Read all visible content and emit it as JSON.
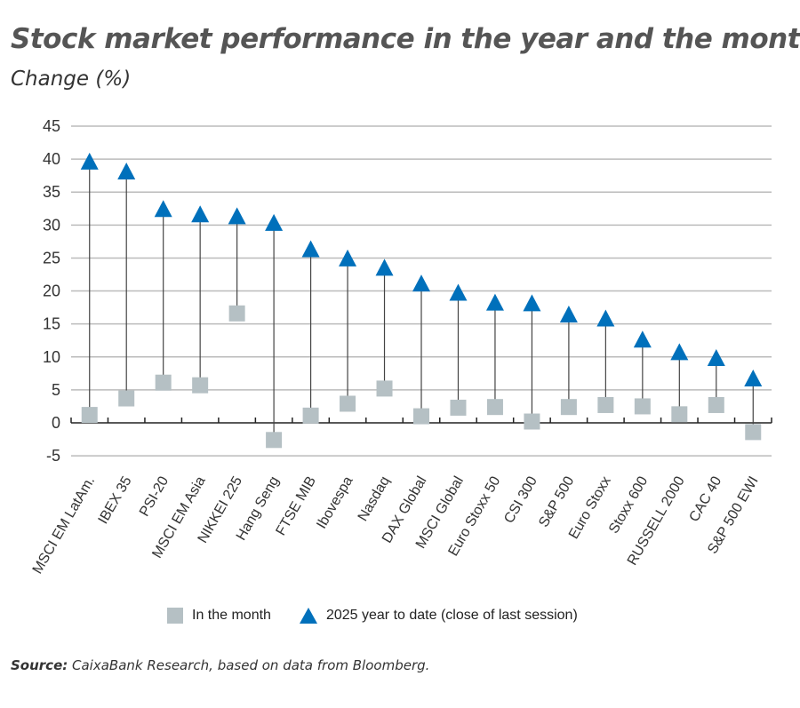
{
  "title": "Stock market performance in the year and the month",
  "subtitle": "Change (%)",
  "source_label": "Source:",
  "source_text": " CaixaBank Research, based on data from Bloomberg.",
  "chart_data": {
    "type": "scatter",
    "categories": [
      "MSCI EM LatAm.",
      "IBEX 35",
      "PSI-20",
      "MSCI EM Asia",
      "NIKKEI 225",
      "Hang Seng",
      "FTSE MIB",
      "Ibovespa",
      "Nasdaq",
      "DAX Global",
      "MSCI Global",
      "Euro Stoxx 50",
      "CSI 300",
      "S&P 500",
      "Euro Stoxx",
      "Stoxx 600",
      "RUSSELL 2000",
      "CAC 40",
      "S&P 500 EWI"
    ],
    "series": [
      {
        "name": "In the month",
        "marker": "square",
        "color": "#b5c0c4",
        "values": [
          1.2,
          3.7,
          6.1,
          5.7,
          16.6,
          -2.6,
          1.1,
          2.9,
          5.2,
          1.0,
          2.3,
          2.4,
          0.2,
          2.4,
          2.7,
          2.5,
          1.3,
          2.7,
          -1.4
        ]
      },
      {
        "name": "2025 year to date (close of last session)",
        "marker": "triangle",
        "color": "#0070bb",
        "values": [
          39.5,
          38.0,
          32.3,
          31.5,
          31.2,
          30.2,
          26.2,
          24.8,
          23.4,
          21.0,
          19.6,
          18.1,
          18.0,
          16.3,
          15.7,
          12.5,
          10.6,
          9.7,
          6.6
        ]
      }
    ],
    "ylim": [
      -5,
      45
    ],
    "yticks": [
      -5,
      0,
      5,
      10,
      15,
      20,
      25,
      30,
      35,
      40,
      45
    ],
    "grid": true,
    "legend": "bottom"
  }
}
